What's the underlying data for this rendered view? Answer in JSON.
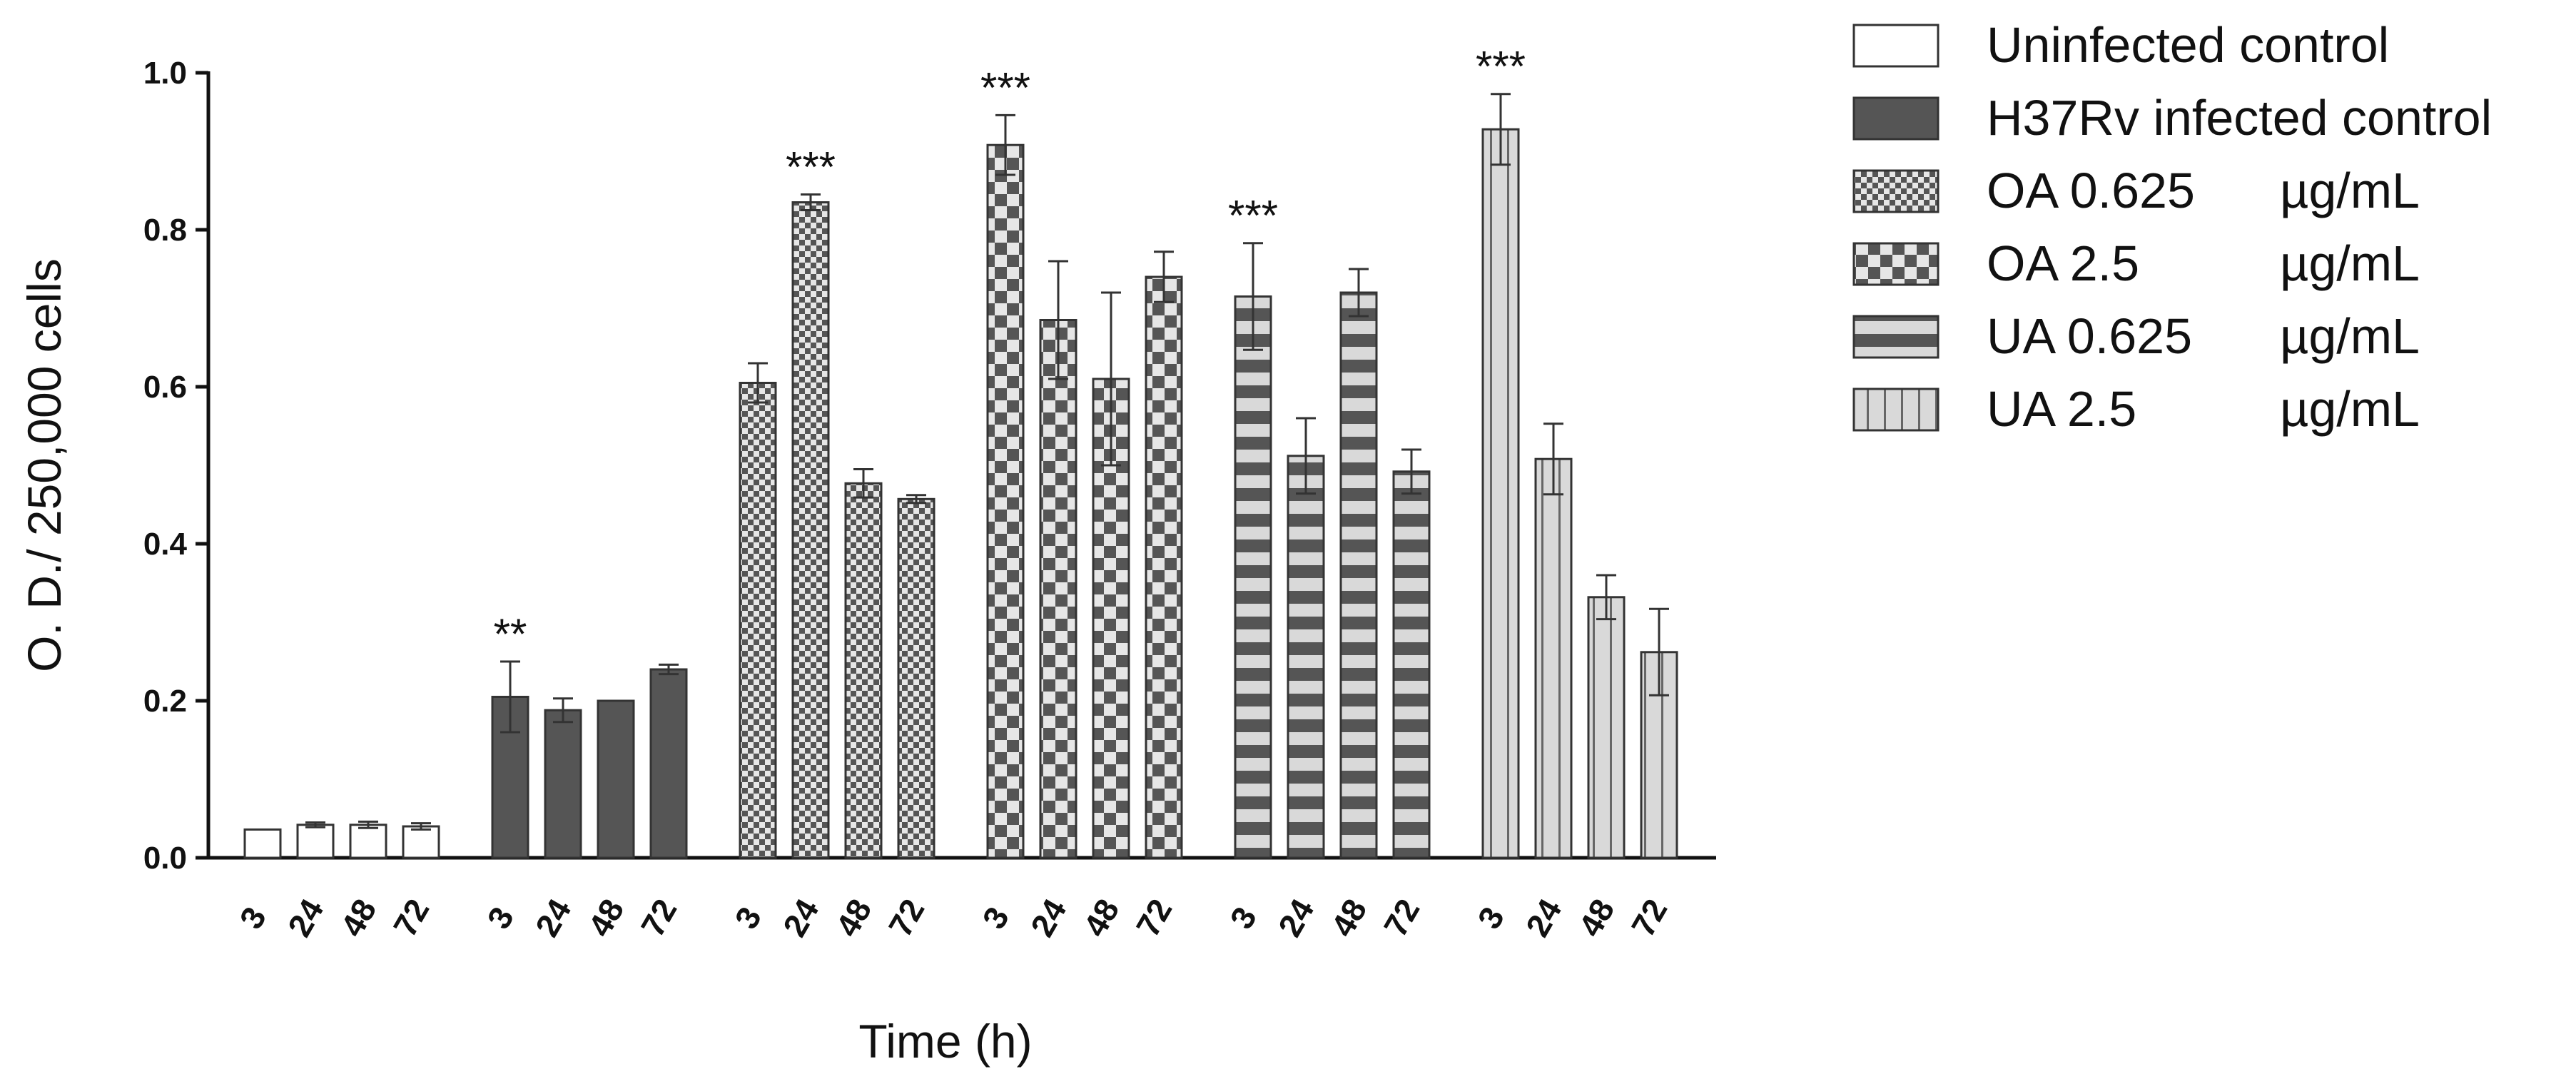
{
  "chart_data": {
    "type": "bar",
    "xlabel": "Time (h)",
    "ylabel": "O. D./ 250,000 cells",
    "ylim": [
      0,
      1.0
    ],
    "yticks": [
      "0.0",
      "0.2",
      "0.4",
      "0.6",
      "0.8",
      "1.0"
    ],
    "ytick_values": [
      0,
      0.2,
      0.4,
      0.6,
      0.8,
      1.0
    ],
    "categories": [
      "3",
      "24",
      "48",
      "72"
    ],
    "legend_position": "right",
    "series": [
      {
        "name": "Uninfected control",
        "name_part1": "Uninfected control",
        "name_part2": "",
        "pattern": "open",
        "values": [
          0.036,
          0.042,
          0.042,
          0.04
        ],
        "errors": [
          0.0,
          0.003,
          0.004,
          0.004
        ],
        "significance": ""
      },
      {
        "name": "H37Rv infected control",
        "name_part1": "H37Rv infected control",
        "name_part2": "",
        "pattern": "solid",
        "values": [
          0.205,
          0.188,
          0.2,
          0.24
        ],
        "errors": [
          0.045,
          0.015,
          0.0,
          0.006
        ],
        "significance": "**"
      },
      {
        "name": "OA 0.625 µg/mL",
        "name_part1": "OA 0.625",
        "name_part2": "µg/mL",
        "pattern": "fine-check",
        "values": [
          0.605,
          0.835,
          0.477,
          0.457
        ],
        "errors": [
          0.025,
          0.01,
          0.018,
          0.005
        ],
        "significance": "***"
      },
      {
        "name": "OA 2.5 µg/mL",
        "name_part1": "OA 2.5",
        "name_part2": "µg/mL",
        "pattern": "coarse-check",
        "values": [
          0.908,
          0.685,
          0.61,
          0.74
        ],
        "errors": [
          0.038,
          0.075,
          0.11,
          0.032
        ],
        "significance": "***"
      },
      {
        "name": "UA 0.625 µg/mL",
        "name_part1": "UA 0.625",
        "name_part2": "µg/mL",
        "pattern": "horizontal-stripes",
        "values": [
          0.715,
          0.512,
          0.72,
          0.492
        ],
        "errors": [
          0.068,
          0.048,
          0.03,
          0.028
        ],
        "significance": "***"
      },
      {
        "name": "UA 2.5 µg/mL",
        "name_part1": "UA 2.5",
        "name_part2": "µg/mL",
        "pattern": "vertical-stripes",
        "values": [
          0.928,
          0.508,
          0.332,
          0.262
        ],
        "errors": [
          0.045,
          0.045,
          0.028,
          0.055
        ],
        "significance": "***"
      }
    ]
  },
  "colors": {
    "axis": "#111111",
    "bar_dark": "#555555",
    "bar_light": "#d9d9d9",
    "bar_outline": "#333333",
    "background": "#ffffff"
  }
}
